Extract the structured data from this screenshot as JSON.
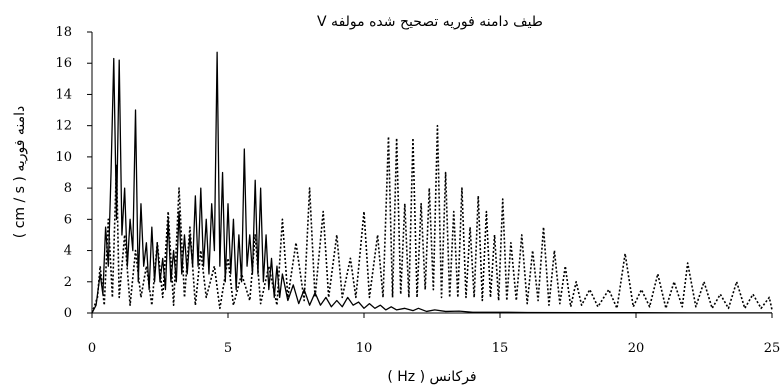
{
  "chart_data": {
    "type": "line",
    "title": "طیف دامنه فوریه تصحیح شده مولفه V",
    "xlabel": "فرکانس ( Hz )",
    "ylabel": "دامنه فوریه  ( cm / s )",
    "xlim": [
      0,
      25
    ],
    "ylim": [
      0,
      18
    ],
    "x_ticks": [
      0,
      5,
      10,
      15,
      20,
      25
    ],
    "y_ticks": [
      0,
      2,
      4,
      6,
      8,
      10,
      12,
      14,
      16,
      18
    ],
    "grid": false,
    "legend": "none",
    "series": [
      {
        "style": "solid",
        "color": "#000000",
        "points": [
          [
            0,
            0
          ],
          [
            0.15,
            0.5
          ],
          [
            0.3,
            2.5
          ],
          [
            0.4,
            1.2
          ],
          [
            0.5,
            5.5
          ],
          [
            0.6,
            3
          ],
          [
            0.7,
            9
          ],
          [
            0.8,
            16.3
          ],
          [
            0.9,
            6
          ],
          [
            1.0,
            16.2
          ],
          [
            1.1,
            5
          ],
          [
            1.2,
            8
          ],
          [
            1.3,
            3
          ],
          [
            1.4,
            6
          ],
          [
            1.5,
            4
          ],
          [
            1.6,
            13
          ],
          [
            1.7,
            2
          ],
          [
            1.8,
            7
          ],
          [
            1.9,
            3
          ],
          [
            2.0,
            4.5
          ],
          [
            2.1,
            1.5
          ],
          [
            2.2,
            5.5
          ],
          [
            2.3,
            2
          ],
          [
            2.4,
            4.5
          ],
          [
            2.5,
            2
          ],
          [
            2.6,
            3.5
          ],
          [
            2.7,
            1.5
          ],
          [
            2.8,
            6
          ],
          [
            2.9,
            2
          ],
          [
            3.0,
            4
          ],
          [
            3.1,
            2
          ],
          [
            3.2,
            6.5
          ],
          [
            3.3,
            2.5
          ],
          [
            3.4,
            5
          ],
          [
            3.5,
            2.5
          ],
          [
            3.6,
            5
          ],
          [
            3.7,
            3
          ],
          [
            3.8,
            7.5
          ],
          [
            3.9,
            3
          ],
          [
            4.0,
            8
          ],
          [
            4.1,
            3
          ],
          [
            4.2,
            6
          ],
          [
            4.3,
            2.5
          ],
          [
            4.4,
            7
          ],
          [
            4.5,
            4
          ],
          [
            4.6,
            16.7
          ],
          [
            4.7,
            3
          ],
          [
            4.8,
            9
          ],
          [
            4.9,
            2
          ],
          [
            5.0,
            7
          ],
          [
            5.1,
            2.5
          ],
          [
            5.2,
            6
          ],
          [
            5.3,
            1.5
          ],
          [
            5.4,
            5
          ],
          [
            5.5,
            2
          ],
          [
            5.6,
            10.5
          ],
          [
            5.7,
            3
          ],
          [
            5.8,
            5
          ],
          [
            5.9,
            2.5
          ],
          [
            6.0,
            8.5
          ],
          [
            6.1,
            2.5
          ],
          [
            6.2,
            8
          ],
          [
            6.3,
            2
          ],
          [
            6.4,
            5
          ],
          [
            6.5,
            1.5
          ],
          [
            6.6,
            3.5
          ],
          [
            6.7,
            1
          ],
          [
            6.8,
            3
          ],
          [
            6.9,
            1
          ],
          [
            7.0,
            2.5
          ],
          [
            7.2,
            0.8
          ],
          [
            7.4,
            1.8
          ],
          [
            7.6,
            0.6
          ],
          [
            7.8,
            1.5
          ],
          [
            8.0,
            0.5
          ],
          [
            8.2,
            1.3
          ],
          [
            8.4,
            0.5
          ],
          [
            8.6,
            1
          ],
          [
            8.8,
            0.4
          ],
          [
            9.0,
            0.8
          ],
          [
            9.2,
            0.4
          ],
          [
            9.4,
            1
          ],
          [
            9.6,
            0.5
          ],
          [
            9.8,
            0.7
          ],
          [
            10.0,
            0.3
          ],
          [
            10.2,
            0.6
          ],
          [
            10.4,
            0.3
          ],
          [
            10.6,
            0.5
          ],
          [
            10.8,
            0.2
          ],
          [
            11.0,
            0.4
          ],
          [
            11.2,
            0.2
          ],
          [
            11.5,
            0.3
          ],
          [
            11.8,
            0.15
          ],
          [
            12.0,
            0.3
          ],
          [
            12.3,
            0.1
          ],
          [
            12.6,
            0.2
          ],
          [
            13.0,
            0.1
          ],
          [
            13.5,
            0.12
          ],
          [
            14.0,
            0.05
          ],
          [
            15.0,
            0.05
          ],
          [
            16.0,
            0.03
          ],
          [
            18.0,
            0.02
          ],
          [
            20.0,
            0.02
          ],
          [
            22.0,
            0.01
          ],
          [
            25.0,
            0.01
          ]
        ]
      },
      {
        "style": "dotted",
        "color": "#000000",
        "points": [
          [
            0,
            0
          ],
          [
            0.2,
            1
          ],
          [
            0.3,
            3
          ],
          [
            0.45,
            0.5
          ],
          [
            0.6,
            6
          ],
          [
            0.75,
            1
          ],
          [
            0.9,
            9.5
          ],
          [
            1.0,
            1
          ],
          [
            1.2,
            5
          ],
          [
            1.4,
            0.5
          ],
          [
            1.6,
            4
          ],
          [
            1.8,
            1
          ],
          [
            2.0,
            3
          ],
          [
            2.2,
            0.5
          ],
          [
            2.4,
            4.5
          ],
          [
            2.6,
            1
          ],
          [
            2.8,
            6.5
          ],
          [
            3.0,
            0.5
          ],
          [
            3.2,
            8
          ],
          [
            3.4,
            1
          ],
          [
            3.6,
            5.5
          ],
          [
            3.8,
            0.5
          ],
          [
            4.0,
            4
          ],
          [
            4.2,
            1
          ],
          [
            4.5,
            3
          ],
          [
            4.7,
            0.3
          ],
          [
            5.0,
            3.5
          ],
          [
            5.2,
            0.5
          ],
          [
            5.5,
            2.5
          ],
          [
            5.8,
            0.8
          ],
          [
            6.0,
            5
          ],
          [
            6.2,
            0.6
          ],
          [
            6.5,
            3
          ],
          [
            6.8,
            0.5
          ],
          [
            7.0,
            6
          ],
          [
            7.2,
            1
          ],
          [
            7.5,
            4.5
          ],
          [
            7.8,
            0.8
          ],
          [
            8.0,
            8
          ],
          [
            8.2,
            1
          ],
          [
            8.5,
            6.5
          ],
          [
            8.7,
            1
          ],
          [
            9.0,
            5
          ],
          [
            9.2,
            1
          ],
          [
            9.5,
            3.5
          ],
          [
            9.7,
            1
          ],
          [
            10.0,
            6.5
          ],
          [
            10.2,
            1
          ],
          [
            10.5,
            5
          ],
          [
            10.7,
            1
          ],
          [
            10.9,
            11.3
          ],
          [
            11.05,
            1
          ],
          [
            11.2,
            11.2
          ],
          [
            11.35,
            1.2
          ],
          [
            11.5,
            7
          ],
          [
            11.65,
            1
          ],
          [
            11.8,
            11.2
          ],
          [
            11.95,
            1
          ],
          [
            12.1,
            7
          ],
          [
            12.25,
            1.5
          ],
          [
            12.4,
            8
          ],
          [
            12.55,
            1.5
          ],
          [
            12.7,
            12
          ],
          [
            12.85,
            1
          ],
          [
            13.0,
            9
          ],
          [
            13.15,
            1
          ],
          [
            13.3,
            6.5
          ],
          [
            13.45,
            1
          ],
          [
            13.6,
            8
          ],
          [
            13.75,
            1
          ],
          [
            13.9,
            5.5
          ],
          [
            14.05,
            1
          ],
          [
            14.2,
            7.5
          ],
          [
            14.35,
            0.8
          ],
          [
            14.5,
            6.5
          ],
          [
            14.65,
            1
          ],
          [
            14.8,
            5
          ],
          [
            14.95,
            0.8
          ],
          [
            15.1,
            7.3
          ],
          [
            15.25,
            0.8
          ],
          [
            15.4,
            4.5
          ],
          [
            15.6,
            0.8
          ],
          [
            15.8,
            5
          ],
          [
            16.0,
            0.6
          ],
          [
            16.2,
            4
          ],
          [
            16.4,
            0.8
          ],
          [
            16.6,
            5.5
          ],
          [
            16.8,
            0.5
          ],
          [
            17.0,
            4
          ],
          [
            17.2,
            0.6
          ],
          [
            17.4,
            3
          ],
          [
            17.6,
            0.4
          ],
          [
            17.8,
            2
          ],
          [
            18.0,
            0.5
          ],
          [
            18.3,
            1.5
          ],
          [
            18.6,
            0.4
          ],
          [
            19.0,
            1.5
          ],
          [
            19.3,
            0.3
          ],
          [
            19.6,
            3.8
          ],
          [
            19.9,
            0.4
          ],
          [
            20.2,
            1.5
          ],
          [
            20.5,
            0.4
          ],
          [
            20.8,
            2.5
          ],
          [
            21.1,
            0.3
          ],
          [
            21.4,
            2
          ],
          [
            21.7,
            0.4
          ],
          [
            21.9,
            3.2
          ],
          [
            22.2,
            0.4
          ],
          [
            22.5,
            2
          ],
          [
            22.8,
            0.3
          ],
          [
            23.1,
            1.2
          ],
          [
            23.4,
            0.3
          ],
          [
            23.7,
            2
          ],
          [
            24.0,
            0.3
          ],
          [
            24.3,
            1.2
          ],
          [
            24.6,
            0.3
          ],
          [
            24.9,
            1
          ],
          [
            25.0,
            0.2
          ]
        ]
      }
    ]
  }
}
